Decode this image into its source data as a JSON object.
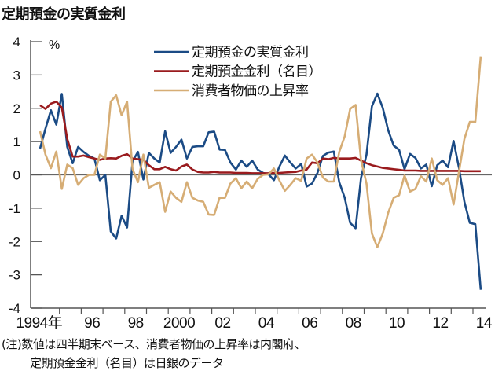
{
  "title": "定期預金の実質金利",
  "chart_data": {
    "type": "line",
    "title": "定期預金の実質金利",
    "ylabel": "%",
    "ylim": [
      -4,
      4
    ],
    "yticks": [
      4,
      3,
      2,
      1,
      0,
      -1,
      -2,
      -3,
      -4
    ],
    "x_start": "1994 Q1",
    "x_frequency": "quarterly",
    "xlim": [
      1994,
      2014.5
    ],
    "xtick_labels": [
      {
        "year": 1994,
        "label": "1994年"
      },
      {
        "year": 1996,
        "label": "96"
      },
      {
        "year": 1998,
        "label": "98"
      },
      {
        "year": 2000,
        "label": "2000"
      },
      {
        "year": 2002,
        "label": "02"
      },
      {
        "year": 2004,
        "label": "04"
      },
      {
        "year": 2006,
        "label": "06"
      },
      {
        "year": 2008,
        "label": "08"
      },
      {
        "year": 2010,
        "label": "10"
      },
      {
        "year": 2012,
        "label": "12"
      },
      {
        "year": 2014,
        "label": "14"
      }
    ],
    "grid": false,
    "legend_position": "top-center",
    "series": [
      {
        "name": "定期預金の実質金利",
        "color": "#1b4b85",
        "values": [
          0.79,
          1.39,
          1.94,
          1.51,
          2.43,
          0.84,
          0.35,
          0.84,
          0.69,
          0.57,
          0.49,
          -0.16,
          0,
          -1.7,
          -1.91,
          -1.23,
          -1.58,
          0.41,
          0.69,
          -0.14,
          0.66,
          0.49,
          0.37,
          1.31,
          0.66,
          0.84,
          1.06,
          0.49,
          0.84,
          0.86,
          0.86,
          1.28,
          1.3,
          0.76,
          0.75,
          0.37,
          0.16,
          0.43,
          0.24,
          0.43,
          0.16,
          0.06,
          0.02,
          -0.16,
          0.25,
          0.58,
          0.37,
          0.19,
          0.33,
          -0.35,
          -0.26,
          0.06,
          0.57,
          0.67,
          0.7,
          -0.22,
          -0.69,
          -1.44,
          -1.6,
          -0.1,
          0.61,
          2.06,
          2.44,
          2.01,
          1.33,
          0.88,
          0.75,
          0.17,
          0.63,
          0.51,
          0.19,
          0.31,
          -0.34,
          0.29,
          0.43,
          0.23,
          1.02,
          0.21,
          -0.81,
          -1.44,
          -1.48,
          -3.45
        ]
      },
      {
        "name": "定期預金金利（名目）",
        "color": "#9a1b1e",
        "values": [
          2.09,
          1.98,
          2.14,
          2.2,
          2.02,
          1.08,
          0.55,
          0.55,
          0.58,
          0.53,
          0.49,
          0.45,
          0.49,
          0.5,
          0.49,
          0.57,
          0.62,
          0.49,
          0.47,
          0.45,
          0.29,
          0.17,
          0.17,
          0.24,
          0.17,
          0.13,
          0.25,
          0.31,
          0.16,
          0.09,
          0.07,
          0.07,
          0.09,
          0.07,
          0.07,
          0.07,
          0.06,
          0.06,
          0.06,
          0.05,
          0.05,
          0.05,
          0.05,
          0.06,
          0.06,
          0.07,
          0.08,
          0.09,
          0.13,
          0.16,
          0.37,
          0.35,
          0.49,
          0.47,
          0.51,
          0.49,
          0.49,
          0.49,
          0.51,
          0.43,
          0.35,
          0.29,
          0.25,
          0.21,
          0.19,
          0.17,
          0.15,
          0.13,
          0.13,
          0.13,
          0.12,
          0.12,
          0.12,
          0.12,
          0.12,
          0.12,
          0.12,
          0.12,
          0.11,
          0.11,
          0.11,
          0.11
        ]
      },
      {
        "name": "消費者物価の上昇率",
        "color": "#d6ad75",
        "values": [
          1.31,
          0.61,
          0.2,
          0.7,
          -0.42,
          0.31,
          0.2,
          -0.3,
          -0.1,
          0,
          0,
          0.61,
          0.49,
          2.2,
          2.39,
          1.79,
          2.2,
          0.17,
          -0.22,
          0.61,
          -0.39,
          -0.3,
          -0.22,
          -1.11,
          -0.5,
          -0.69,
          -0.81,
          -0.22,
          -0.69,
          -0.77,
          -0.81,
          -1.19,
          -1.2,
          -0.69,
          -0.69,
          -0.26,
          -0.1,
          -0.4,
          -0.2,
          -0.4,
          -0.12,
          0,
          0.02,
          0.19,
          -0.17,
          -0.48,
          -0.3,
          -0.1,
          -0.18,
          0.49,
          0.61,
          0.37,
          -0.08,
          -0.2,
          -0.2,
          0.69,
          1.16,
          1.98,
          2.1,
          0.45,
          -0.26,
          -1.76,
          -2.17,
          -1.76,
          -1.13,
          -0.69,
          -0.61,
          -0.02,
          -0.5,
          -0.42,
          -0.04,
          -0.2,
          0.49,
          -0.16,
          -0.3,
          -0.1,
          -0.89,
          0.09,
          1.08,
          1.59,
          1.59,
          3.56
        ]
      }
    ]
  },
  "notes": {
    "line1": "(注)数値は四半期末ベース、消費者物価の上昇率は内閣府、",
    "line2": "定期預金金利（名目）は日銀のデータ"
  }
}
